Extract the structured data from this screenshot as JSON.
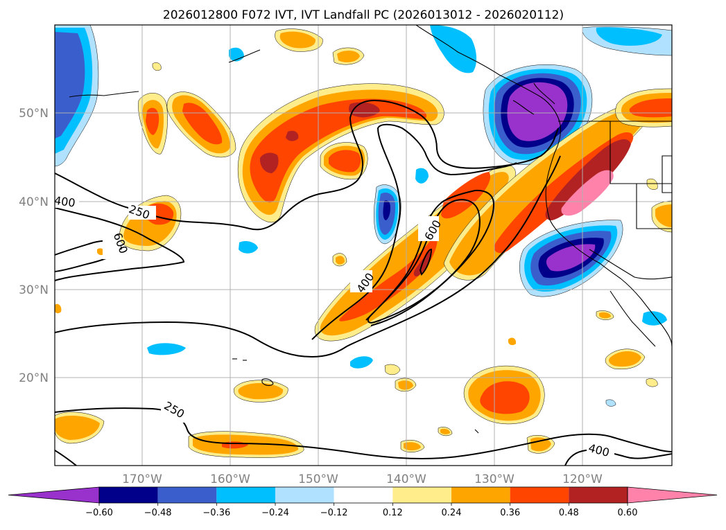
{
  "title": "2026012800 F072 IVT, IVT Landfall PC (2026013012 - 2026020112)",
  "colors": {
    "n60": "#9932cc",
    "n48": "#00008b",
    "n36": "#3a5fcd",
    "n24": "#00bfff",
    "n12": "#b0e2ff",
    "zero": "#ffffff",
    "p12": "#ffec8b",
    "p24": "#ffa500",
    "p36": "#ff4500",
    "p48": "#b22222",
    "p60": "#ff82ab",
    "coast": "#000000",
    "grid": "#b0b0b0"
  },
  "axes": {
    "lat_labels": [
      "50°N",
      "40°N",
      "30°N",
      "20°N"
    ],
    "lon_labels": [
      "170°W",
      "160°W",
      "150°W",
      "140°W",
      "130°W",
      "120°W"
    ]
  },
  "contour_labels": {
    "l400a": "400",
    "l250a": "250",
    "l600a": "600",
    "l400b": "400",
    "l600b": "600",
    "l250b": "250",
    "l400c": "400"
  },
  "colorbar": {
    "ticks": [
      "−0.60",
      "−0.48",
      "−0.36",
      "−0.24",
      "−0.12",
      "0.12",
      "0.24",
      "0.36",
      "0.48",
      "0.60"
    ],
    "bins": [
      {
        "range": "<-0.60",
        "color": "#9932cc"
      },
      {
        "range": "-0.60 to -0.48",
        "color": "#00008b"
      },
      {
        "range": "-0.48 to -0.36",
        "color": "#3a5fcd"
      },
      {
        "range": "-0.36 to -0.24",
        "color": "#00bfff"
      },
      {
        "range": "-0.24 to -0.12",
        "color": "#b0e2ff"
      },
      {
        "range": "-0.12 to 0.12",
        "color": "#ffffff"
      },
      {
        "range": "0.12 to 0.24",
        "color": "#ffec8b"
      },
      {
        "range": "0.24 to 0.36",
        "color": "#ffa500"
      },
      {
        "range": "0.36 to 0.48",
        "color": "#ff4500"
      },
      {
        "range": "0.48 to 0.60",
        "color": "#b22222"
      },
      {
        "range": ">0.60",
        "color": "#ff82ab"
      }
    ]
  }
}
